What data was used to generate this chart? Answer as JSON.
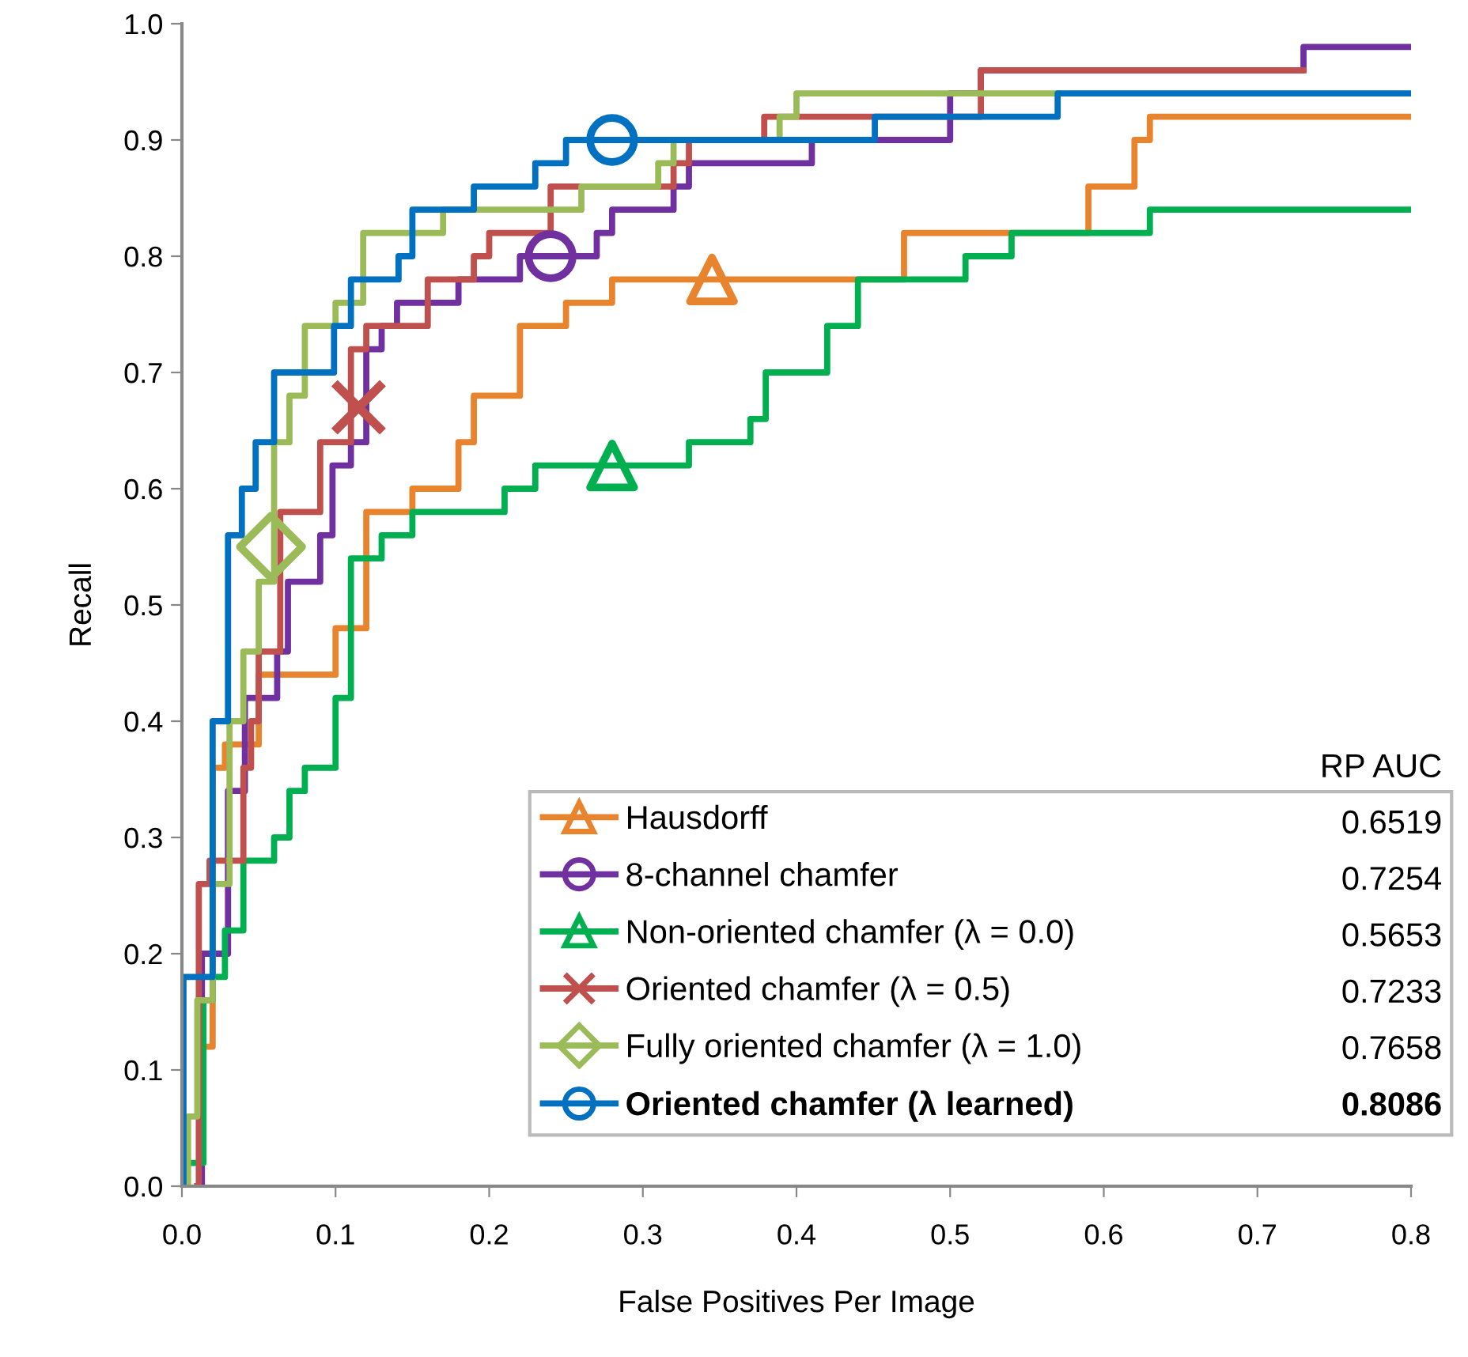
{
  "chart_data": {
    "type": "step",
    "xlabel": "False Positives Per Image",
    "ylabel": "Recall",
    "xlim": [
      0,
      0.8
    ],
    "ylim": [
      0,
      1.0
    ],
    "xticks": [
      {
        "value": 0,
        "label": "0.0"
      },
      {
        "value": 0.1,
        "label": "0.1"
      },
      {
        "value": 0.2,
        "label": "0.2"
      },
      {
        "value": 0.3,
        "label": "0.3"
      },
      {
        "value": 0.4,
        "label": "0.4"
      },
      {
        "value": 0.5,
        "label": "0.5"
      },
      {
        "value": 0.6,
        "label": "0.6"
      },
      {
        "value": 0.7,
        "label": "0.7"
      },
      {
        "value": 0.8,
        "label": "0.8"
      }
    ],
    "yticks": [
      {
        "value": 0,
        "label": "0.0"
      },
      {
        "value": 0.1,
        "label": "0.1"
      },
      {
        "value": 0.2,
        "label": "0.2"
      },
      {
        "value": 0.3,
        "label": "0.3"
      },
      {
        "value": 0.4,
        "label": "0.4"
      },
      {
        "value": 0.5,
        "label": "0.5"
      },
      {
        "value": 0.6,
        "label": "0.6"
      },
      {
        "value": 0.7,
        "label": "0.7"
      },
      {
        "value": 0.8,
        "label": "0.8"
      },
      {
        "value": 0.9,
        "label": "0.9"
      },
      {
        "value": 1.0,
        "label": "1.0"
      }
    ],
    "grid": false,
    "legend": "bottom right",
    "line_style": "solid",
    "annotations": [
      "RP AUC",
      "0.6519",
      "0.7254",
      "0.5653",
      "0.7233",
      "0.7658",
      "0.8086"
    ],
    "series": [
      {
        "name": "Hausdorff",
        "color": "#e8842e",
        "x": [
          0.01,
          0.012,
          0.02,
          0.028,
          0.05,
          0.1,
          0.12,
          0.15,
          0.18,
          0.19,
          0.22,
          0.25,
          0.28,
          0.47,
          0.59,
          0.62,
          0.63,
          0.8
        ],
        "values": [
          0,
          0.12,
          0.36,
          0.38,
          0.44,
          0.48,
          0.58,
          0.6,
          0.64,
          0.68,
          0.74,
          0.76,
          0.78,
          0.82,
          0.86,
          0.9,
          0.92,
          0.92
        ]
      },
      {
        "name": "8-channel chamfer",
        "color": "#7030a0",
        "x": [
          0.012,
          0.013,
          0.03,
          0.041,
          0.062,
          0.069,
          0.09,
          0.098,
          0.11,
          0.12,
          0.13,
          0.14,
          0.18,
          0.22,
          0.27,
          0.28,
          0.32,
          0.33,
          0.41,
          0.5,
          0.52,
          0.73,
          0.8
        ],
        "values": [
          0,
          0.2,
          0.34,
          0.42,
          0.46,
          0.52,
          0.56,
          0.62,
          0.64,
          0.72,
          0.74,
          0.76,
          0.78,
          0.8,
          0.82,
          0.84,
          0.86,
          0.88,
          0.9,
          0.94,
          0.96,
          0.98,
          0.98
        ]
      },
      {
        "name": "Non-oriented chamfer (λ = 0.0)",
        "color": "#00b050",
        "x": [
          0,
          0.001,
          0.014,
          0.02,
          0.028,
          0.04,
          0.06,
          0.07,
          0.08,
          0.1,
          0.11,
          0.13,
          0.15,
          0.21,
          0.23,
          0.33,
          0.37,
          0.38,
          0.42,
          0.44,
          0.51,
          0.54,
          0.63,
          0.8
        ],
        "values": [
          0,
          0.02,
          0.16,
          0.18,
          0.22,
          0.28,
          0.3,
          0.34,
          0.36,
          0.42,
          0.54,
          0.56,
          0.58,
          0.6,
          0.62,
          0.64,
          0.66,
          0.7,
          0.74,
          0.78,
          0.8,
          0.82,
          0.84,
          0.84
        ]
      },
      {
        "name": "Oriented chamfer (λ = 0.5)",
        "color": "#c0504d",
        "x": [
          0.01,
          0.011,
          0.018,
          0.04,
          0.045,
          0.05,
          0.064,
          0.09,
          0.11,
          0.12,
          0.16,
          0.19,
          0.2,
          0.24,
          0.32,
          0.33,
          0.379,
          0.52,
          0.73
        ],
        "values": [
          0,
          0.26,
          0.28,
          0.36,
          0.4,
          0.46,
          0.58,
          0.64,
          0.72,
          0.74,
          0.78,
          0.8,
          0.82,
          0.86,
          0.88,
          0.9,
          0.92,
          0.96,
          0.96
        ]
      },
      {
        "name": "Fully oriented chamfer (λ = 1.0)",
        "color": "#9bbb59",
        "x": [
          0.003,
          0.004,
          0.01,
          0.02,
          0.031,
          0.04,
          0.05,
          0.06,
          0.07,
          0.08,
          0.1,
          0.118,
          0.17,
          0.26,
          0.31,
          0.32,
          0.389,
          0.4,
          0.57
        ],
        "values": [
          0,
          0.06,
          0.16,
          0.26,
          0.4,
          0.46,
          0.52,
          0.64,
          0.68,
          0.74,
          0.76,
          0.82,
          0.84,
          0.86,
          0.88,
          0.9,
          0.92,
          0.94,
          0.94
        ]
      },
      {
        "name": "Oriented chamfer (λ learned)",
        "color": "#0070c0",
        "x": [
          0,
          0.001,
          0.02,
          0.03,
          0.039,
          0.048,
          0.06,
          0.099,
          0.11,
          0.141,
          0.15,
          0.19,
          0.23,
          0.25,
          0.451,
          0.57,
          0.8
        ],
        "values": [
          0,
          0.18,
          0.4,
          0.56,
          0.6,
          0.64,
          0.7,
          0.74,
          0.78,
          0.8,
          0.84,
          0.86,
          0.88,
          0.9,
          0.92,
          0.94,
          0.94
        ]
      },
      {
        "type": "scatter",
        "color": "#e8842e",
        "marker": "triangle",
        "x": [
          0.345
        ],
        "values": [
          0.78
        ]
      },
      {
        "type": "scatter",
        "color": "#7030a0",
        "marker": "circle",
        "x": [
          0.24
        ],
        "values": [
          0.8
        ]
      },
      {
        "type": "scatter",
        "color": "#00b050",
        "marker": "triangle",
        "x": [
          0.28
        ],
        "values": [
          0.62
        ]
      },
      {
        "type": "scatter",
        "color": "#c0504d",
        "marker": "cross",
        "x": [
          0.115
        ],
        "values": [
          0.67
        ]
      },
      {
        "type": "scatter",
        "color": "#9bbb59",
        "marker": "diamond",
        "x": [
          0.058
        ],
        "values": [
          0.55
        ]
      },
      {
        "type": "scatter",
        "color": "#0070c0",
        "marker": "circle",
        "x": [
          0.28
        ],
        "values": [
          0.9
        ]
      }
    ]
  }
}
